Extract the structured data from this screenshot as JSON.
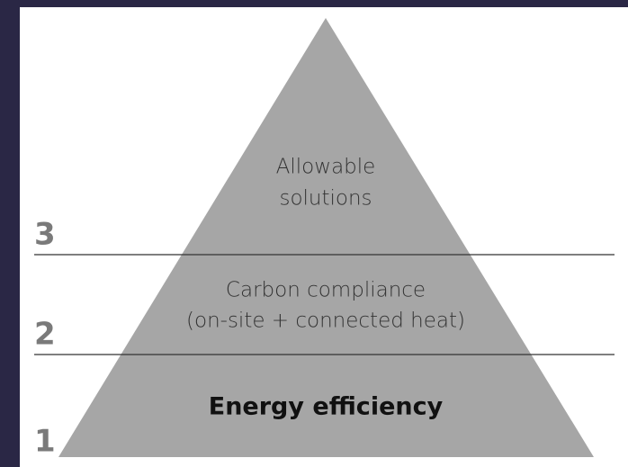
{
  "levels": [
    {
      "number": "3",
      "lines": [
        "Allowable",
        "solutions"
      ]
    },
    {
      "number": "2",
      "lines": [
        "Carbon compliance",
        "(on-site + connected heat)"
      ]
    },
    {
      "number": "1",
      "lines": [
        "Energy efficiency"
      ]
    }
  ]
}
